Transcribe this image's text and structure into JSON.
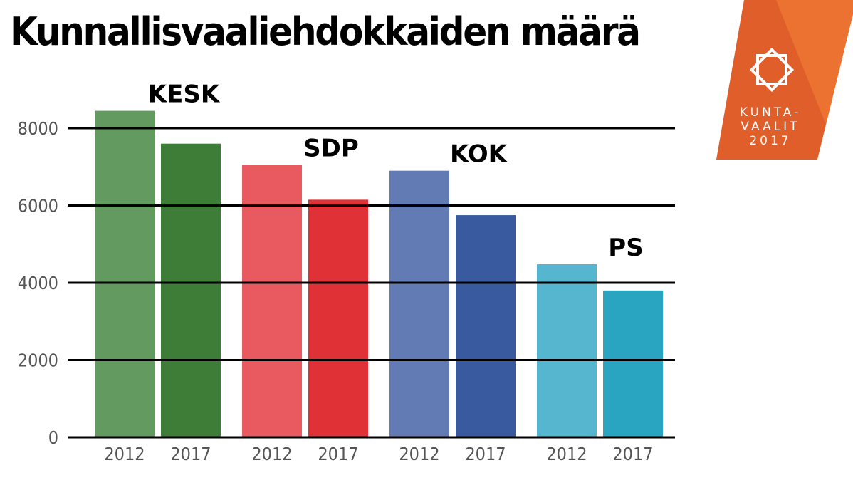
{
  "title": "Kunnallisvaaliehdokkaiden määrä",
  "logo": {
    "line1": "KUNTA-",
    "line2": "VAALIT",
    "line3": "2017"
  },
  "chart_data": {
    "type": "bar",
    "title": "Kunnallisvaaliehdokkaiden määrä",
    "xlabel": "",
    "ylabel": "",
    "ylim": [
      0,
      8000
    ],
    "yticks": [
      "0",
      "2000",
      "4000",
      "6000",
      "8000"
    ],
    "grid": true,
    "groups": [
      {
        "party": "KESK",
        "colors": [
          "#629a60",
          "#3d7d38"
        ],
        "bars": [
          {
            "year": "2012",
            "value": 8450
          },
          {
            "year": "2017",
            "value": 7600
          }
        ]
      },
      {
        "party": "SDP",
        "colors": [
          "#e85a5f",
          "#e03236"
        ],
        "bars": [
          {
            "year": "2012",
            "value": 7050
          },
          {
            "year": "2017",
            "value": 6150
          }
        ]
      },
      {
        "party": "KOK",
        "colors": [
          "#637bb4",
          "#3a5aa0"
        ],
        "bars": [
          {
            "year": "2012",
            "value": 6900
          },
          {
            "year": "2017",
            "value": 5750
          }
        ]
      },
      {
        "party": "PS",
        "colors": [
          "#56b5cf",
          "#2aa5c1"
        ],
        "bars": [
          {
            "year": "2012",
            "value": 4480
          },
          {
            "year": "2017",
            "value": 3800
          }
        ]
      }
    ]
  }
}
